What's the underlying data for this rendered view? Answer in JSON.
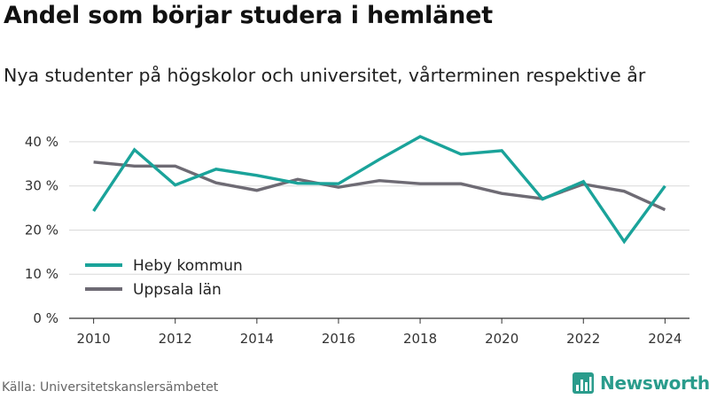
{
  "header": {
    "title": "Andel som börjar studera i hemlänet",
    "subtitle": "Nya studenter på högskolor och universitet, vårterminen respektive år"
  },
  "footer": {
    "source": "Källa: Universitetskanslersämbetet",
    "brand": "Newsworthy",
    "brand_icon": "bar-chart-logo-icon"
  },
  "colors": {
    "heby": "#1aa39a",
    "uppsala": "#6e6b74",
    "grid": "#d9d9d9",
    "axis": "#333333",
    "brand": "#2a9c8c"
  },
  "chart_data": {
    "type": "line",
    "x": [
      2010,
      2011,
      2012,
      2013,
      2014,
      2015,
      2016,
      2017,
      2018,
      2019,
      2020,
      2021,
      2022,
      2023,
      2024
    ],
    "series": [
      {
        "name": "Heby kommun",
        "color": "#1aa39a",
        "values": [
          24.3,
          38.2,
          30.2,
          33.8,
          32.4,
          30.6,
          30.5,
          36.0,
          41.2,
          37.2,
          38.0,
          27.0,
          31.0,
          17.4,
          30.0
        ]
      },
      {
        "name": "Uppsala län",
        "color": "#6e6b74",
        "values": [
          35.4,
          34.5,
          34.5,
          30.7,
          29.0,
          31.5,
          29.7,
          31.2,
          30.5,
          30.5,
          28.3,
          27.1,
          30.4,
          28.8,
          24.6
        ]
      }
    ],
    "xticks": [
      "2010",
      "2012",
      "2014",
      "2016",
      "2018",
      "2020",
      "2022",
      "2024"
    ],
    "yticks": [
      "0 %",
      "10 %",
      "20 %",
      "30 %",
      "40 %"
    ],
    "ytick_values": [
      0,
      10,
      20,
      30,
      40
    ],
    "xlim": [
      2009.4,
      2024.6
    ],
    "ylim": [
      0,
      43
    ],
    "grid": true,
    "legend_position": "bottom-left",
    "title": "Andel som börjar studera i hemlänet",
    "subtitle": "Nya studenter på högskolor och universitet, vårterminen respektive år",
    "xlabel": "",
    "ylabel": ""
  }
}
